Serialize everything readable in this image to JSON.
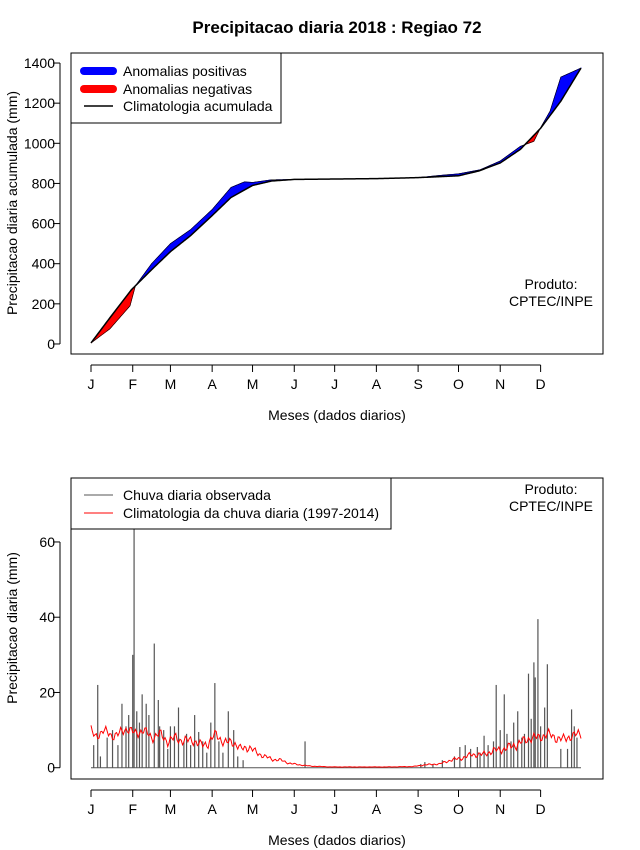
{
  "title": "Precipitacao diaria 2018 : Regiao 72",
  "chart_data": [
    {
      "type": "area",
      "ylabel": "Precipitacao diaria acumulada (mm)",
      "xlabel": "Meses (dados diarios)",
      "ylim": [
        -50,
        1450
      ],
      "yticks": [
        0,
        200,
        400,
        600,
        800,
        1000,
        1200,
        1400
      ],
      "months": [
        "J",
        "F",
        "M",
        "A",
        "M",
        "J",
        "J",
        "A",
        "S",
        "O",
        "N",
        "D"
      ],
      "legend": {
        "positive": "Anomalias positivas",
        "negative": "Anomalias negativas",
        "climatology": "Climatologia acumulada"
      },
      "product": [
        "Produto:",
        "CPTEC/INPE"
      ],
      "colors": {
        "positive": "#0000ff",
        "negative": "#ff0000",
        "climatology": "#000000"
      },
      "climatology_cumulative": {
        "day": [
          1,
          15,
          31,
          46,
          60,
          75,
          91,
          105,
          121,
          135,
          152,
          182,
          213,
          244,
          274,
          289,
          305,
          320,
          335,
          350,
          365
        ],
        "value": [
          5,
          130,
          270,
          370,
          460,
          540,
          640,
          730,
          790,
          812,
          820,
          822,
          824,
          829,
          838,
          862,
          902,
          970,
          1075,
          1210,
          1375
        ]
      },
      "observed_cumulative": {
        "day": [
          1,
          15,
          30,
          34,
          46,
          60,
          75,
          91,
          105,
          115,
          121,
          135,
          152,
          182,
          213,
          244,
          260,
          274,
          290,
          305,
          320,
          330,
          335,
          342,
          350,
          365
        ],
        "value": [
          5,
          75,
          190,
          290,
          400,
          500,
          570,
          670,
          780,
          808,
          805,
          818,
          820,
          822,
          824,
          829,
          840,
          848,
          868,
          912,
          985,
          1010,
          1078,
          1160,
          1330,
          1375
        ]
      }
    },
    {
      "type": "bar",
      "ylabel": "Precipitacao diaria (mm)",
      "xlabel": "Meses (dados diarios)",
      "ylim": [
        -3,
        77
      ],
      "yticks": [
        0,
        20,
        40,
        60
      ],
      "months": [
        "J",
        "F",
        "M",
        "A",
        "M",
        "J",
        "J",
        "A",
        "S",
        "O",
        "N",
        "D"
      ],
      "legend": {
        "observed": "Chuva diaria observada",
        "climatology": "Climatologia da chuva diaria (1997-2014)"
      },
      "product": [
        "Produto:",
        "CPTEC/INPE"
      ],
      "colors": {
        "observed": "#555555",
        "climatology": "#ff0000"
      },
      "climatology_daily": {
        "day": [
          1,
          4,
          10,
          16,
          22,
          28,
          34,
          40,
          46,
          52,
          58,
          64,
          70,
          76,
          82,
          88,
          94,
          100,
          106,
          112,
          118,
          124,
          130,
          136,
          142,
          148,
          155,
          165,
          180,
          200,
          220,
          240,
          250,
          260,
          268,
          276,
          284,
          292,
          300,
          308,
          316,
          322,
          328,
          334,
          340,
          346,
          352,
          358,
          365
        ],
        "value": [
          10,
          8,
          10,
          8.5,
          9,
          10.5,
          9,
          10,
          8,
          9,
          7,
          8,
          7,
          7.5,
          6,
          6.5,
          9,
          6.5,
          7,
          5,
          5.5,
          4,
          3,
          2.2,
          2,
          1.2,
          0.8,
          0.4,
          0.2,
          0.2,
          0.2,
          0.3,
          0.8,
          1,
          2,
          2.5,
          3.5,
          3.5,
          4.5,
          5,
          6,
          7,
          8,
          8,
          9,
          8,
          7.5,
          8.5,
          9
        ]
      },
      "observed_daily": {
        "day": [
          3,
          6,
          8,
          13,
          17,
          21,
          24,
          27,
          29,
          32,
          33,
          35,
          37,
          39,
          42,
          44,
          48,
          51,
          52,
          55,
          58,
          60,
          63,
          66,
          70,
          72,
          75,
          78,
          81,
          84,
          87,
          90,
          93,
          96,
          99,
          103,
          107,
          110,
          114,
          160,
          246,
          249,
          255,
          262,
          271,
          275,
          279,
          283,
          288,
          290,
          293,
          296,
          300,
          302,
          305,
          308,
          310,
          313,
          315,
          318,
          321,
          323,
          326,
          328,
          330,
          331,
          333,
          335,
          338,
          340,
          350,
          355,
          358,
          360,
          362
        ],
        "value": [
          6,
          22,
          3,
          8,
          10,
          6,
          17,
          11,
          14,
          30,
          64,
          15,
          12,
          19.5,
          17,
          14,
          33,
          18,
          11,
          10,
          5,
          11,
          11,
          16,
          7,
          9,
          6,
          14,
          9.5,
          7,
          4,
          12,
          22.5,
          7,
          4,
          15,
          10,
          3,
          2,
          7,
          1,
          1.5,
          1,
          2,
          3,
          5.5,
          6,
          5,
          5.5,
          4,
          8.5,
          6,
          7,
          22,
          10,
          19.5,
          9,
          7,
          12,
          15,
          8,
          9,
          25,
          13,
          28,
          24,
          39.5,
          11,
          16,
          27.5,
          5,
          5,
          15.5,
          11,
          8
        ]
      }
    }
  ]
}
